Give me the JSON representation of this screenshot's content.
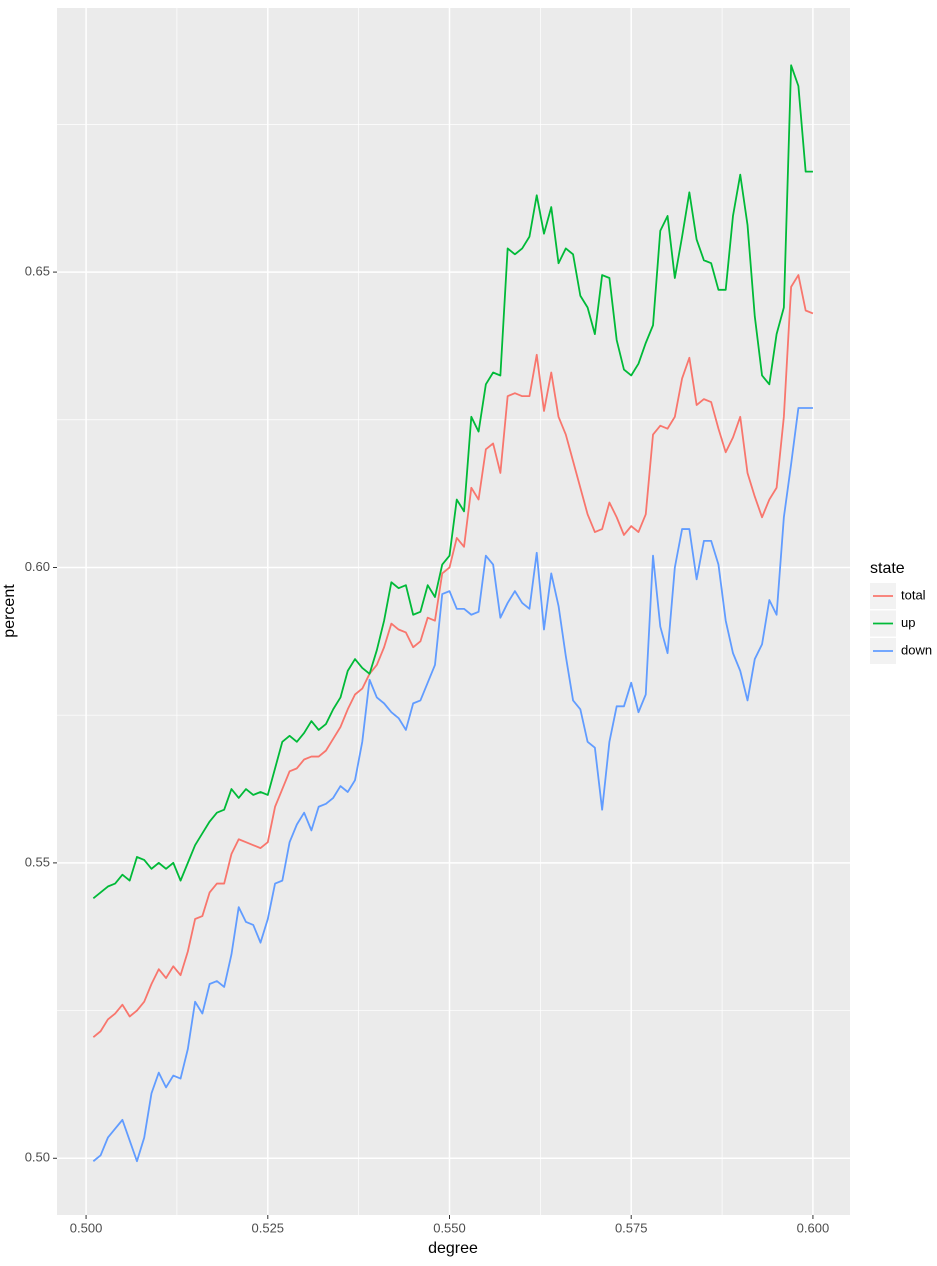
{
  "chart_data": {
    "type": "line",
    "x_label": "degree",
    "y_label": "percent",
    "legend_title": "state",
    "legend_position": "right",
    "grid": true,
    "x": [
      0.501,
      0.502,
      0.503,
      0.504,
      0.505,
      0.506,
      0.507,
      0.508,
      0.509,
      0.51,
      0.511,
      0.512,
      0.513,
      0.514,
      0.515,
      0.516,
      0.517,
      0.518,
      0.519,
      0.52,
      0.521,
      0.522,
      0.523,
      0.524,
      0.525,
      0.526,
      0.527,
      0.528,
      0.529,
      0.53,
      0.531,
      0.532,
      0.533,
      0.534,
      0.535,
      0.536,
      0.537,
      0.538,
      0.539,
      0.54,
      0.541,
      0.542,
      0.543,
      0.544,
      0.545,
      0.546,
      0.547,
      0.548,
      0.549,
      0.55,
      0.551,
      0.552,
      0.553,
      0.554,
      0.555,
      0.556,
      0.557,
      0.558,
      0.559,
      0.56,
      0.561,
      0.562,
      0.563,
      0.564,
      0.565,
      0.566,
      0.567,
      0.568,
      0.569,
      0.57,
      0.571,
      0.572,
      0.573,
      0.574,
      0.575,
      0.576,
      0.577,
      0.578,
      0.579,
      0.58,
      0.581,
      0.582,
      0.583,
      0.584,
      0.585,
      0.586,
      0.587,
      0.588,
      0.589,
      0.59,
      0.591,
      0.592,
      0.593,
      0.594,
      0.595,
      0.596,
      0.597,
      0.598,
      0.599,
      0.6
    ],
    "series": [
      {
        "name": "total",
        "color": "#F8766D",
        "values": [
          0.5205,
          0.5215,
          0.5235,
          0.5245,
          0.526,
          0.524,
          0.525,
          0.5265,
          0.5295,
          0.532,
          0.5305,
          0.5325,
          0.531,
          0.535,
          0.5405,
          0.541,
          0.545,
          0.5465,
          0.5465,
          0.5515,
          0.554,
          0.5535,
          0.553,
          0.5525,
          0.5535,
          0.5595,
          0.5625,
          0.5655,
          0.566,
          0.5675,
          0.568,
          0.568,
          0.569,
          0.571,
          0.573,
          0.576,
          0.5785,
          0.5795,
          0.582,
          0.5835,
          0.5865,
          0.5905,
          0.5895,
          0.589,
          0.5865,
          0.5875,
          0.5915,
          0.591,
          0.599,
          0.6,
          0.605,
          0.6035,
          0.6135,
          0.6115,
          0.62,
          0.621,
          0.616,
          0.629,
          0.6295,
          0.629,
          0.629,
          0.636,
          0.6265,
          0.633,
          0.6255,
          0.6225,
          0.618,
          0.6135,
          0.609,
          0.606,
          0.6065,
          0.611,
          0.6085,
          0.6055,
          0.607,
          0.606,
          0.609,
          0.6225,
          0.624,
          0.6235,
          0.6255,
          0.632,
          0.6355,
          0.6275,
          0.6285,
          0.628,
          0.6235,
          0.6195,
          0.622,
          0.6255,
          0.616,
          0.612,
          0.6085,
          0.6115,
          0.6135,
          0.6255,
          0.6475,
          0.6495,
          0.6435,
          0.643
        ]
      },
      {
        "name": "up",
        "color": "#00BA38",
        "values": [
          0.544,
          0.545,
          0.546,
          0.5465,
          0.548,
          0.547,
          0.551,
          0.5505,
          0.549,
          0.55,
          0.549,
          0.55,
          0.547,
          0.55,
          0.553,
          0.555,
          0.557,
          0.5585,
          0.559,
          0.5625,
          0.561,
          0.5625,
          0.5615,
          0.562,
          0.5615,
          0.566,
          0.5705,
          0.5715,
          0.5705,
          0.572,
          0.574,
          0.5725,
          0.5735,
          0.576,
          0.578,
          0.5825,
          0.5845,
          0.583,
          0.582,
          0.586,
          0.591,
          0.5975,
          0.5965,
          0.597,
          0.592,
          0.5925,
          0.597,
          0.595,
          0.6005,
          0.602,
          0.6115,
          0.6095,
          0.6255,
          0.623,
          0.631,
          0.633,
          0.6325,
          0.654,
          0.653,
          0.654,
          0.656,
          0.663,
          0.6565,
          0.661,
          0.6515,
          0.654,
          0.653,
          0.646,
          0.644,
          0.6395,
          0.6495,
          0.649,
          0.6385,
          0.6335,
          0.6325,
          0.6345,
          0.638,
          0.641,
          0.657,
          0.6595,
          0.649,
          0.656,
          0.6635,
          0.6555,
          0.652,
          0.6515,
          0.647,
          0.647,
          0.6595,
          0.6665,
          0.658,
          0.6425,
          0.6325,
          0.631,
          0.6395,
          0.644,
          0.685,
          0.6815,
          0.667,
          0.667
        ]
      },
      {
        "name": "down",
        "color": "#619CFF",
        "values": [
          0.4995,
          0.5005,
          0.5035,
          0.505,
          0.5065,
          0.503,
          0.4995,
          0.5035,
          0.511,
          0.5145,
          0.512,
          0.514,
          0.5135,
          0.5185,
          0.5265,
          0.5245,
          0.5295,
          0.53,
          0.529,
          0.5345,
          0.5425,
          0.54,
          0.5395,
          0.5365,
          0.5405,
          0.5465,
          0.547,
          0.5535,
          0.5565,
          0.5585,
          0.5555,
          0.5595,
          0.56,
          0.561,
          0.563,
          0.562,
          0.564,
          0.5705,
          0.581,
          0.578,
          0.577,
          0.5755,
          0.5745,
          0.5725,
          0.577,
          0.5775,
          0.5805,
          0.5835,
          0.5955,
          0.596,
          0.593,
          0.593,
          0.592,
          0.5925,
          0.602,
          0.6005,
          0.5915,
          0.594,
          0.596,
          0.594,
          0.593,
          0.6025,
          0.5895,
          0.599,
          0.5935,
          0.585,
          0.5775,
          0.576,
          0.5705,
          0.5695,
          0.559,
          0.5705,
          0.5765,
          0.5765,
          0.5805,
          0.5755,
          0.5785,
          0.602,
          0.59,
          0.5855,
          0.6,
          0.6065,
          0.6065,
          0.598,
          0.6045,
          0.6045,
          0.6005,
          0.591,
          0.5855,
          0.5825,
          0.5775,
          0.5845,
          0.587,
          0.5945,
          0.592,
          0.6085,
          0.6175,
          0.627,
          0.627,
          0.627
        ]
      }
    ],
    "xlim": [
      0.496,
      0.6051
    ],
    "ylim": [
      0.4904,
      0.6947
    ],
    "xticks": [
      {
        "value": 0.5,
        "label": "0.500"
      },
      {
        "value": 0.525,
        "label": "0.525"
      },
      {
        "value": 0.55,
        "label": "0.550"
      },
      {
        "value": 0.575,
        "label": "0.575"
      },
      {
        "value": 0.6,
        "label": "0.600"
      }
    ],
    "yticks": [
      {
        "value": 0.5,
        "label": "0.50"
      },
      {
        "value": 0.55,
        "label": "0.55"
      },
      {
        "value": 0.6,
        "label": "0.60"
      },
      {
        "value": 0.65,
        "label": "0.65"
      }
    ]
  }
}
